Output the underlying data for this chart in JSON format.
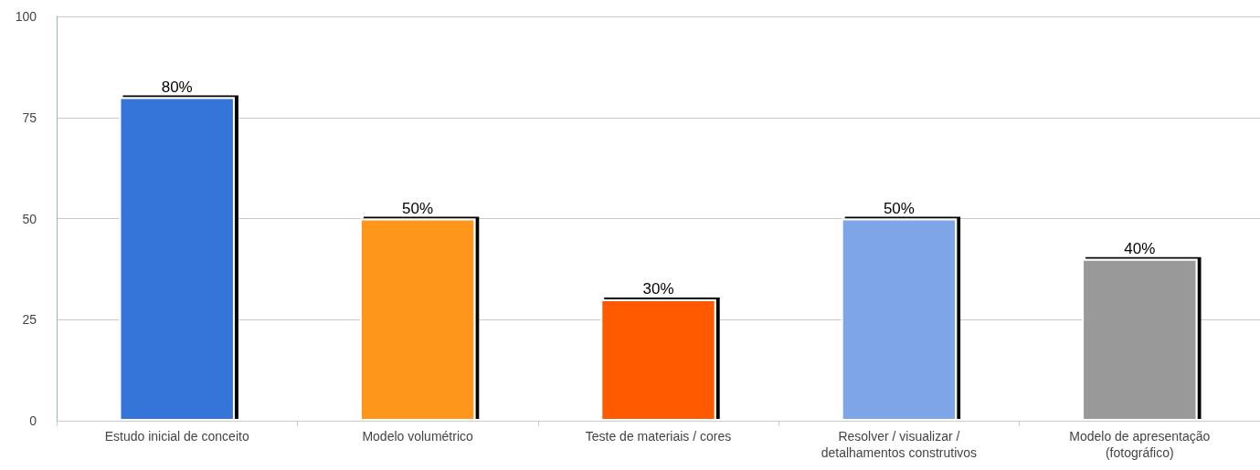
{
  "chart_data": {
    "type": "bar",
    "categories": [
      "Estudo inicial de conceito",
      "Modelo volumétrico",
      "Teste de materiais / cores",
      "Resolver / visualizar /\ndetalhamentos construtivos",
      "Modelo de apresentação\n(fotográfico)"
    ],
    "values": [
      80,
      50,
      30,
      50,
      40
    ],
    "colors": [
      "#3674d9",
      "#ff961e",
      "#ff5a06",
      "#7ea5e8",
      "#999999"
    ],
    "value_labels": [
      "80%",
      "50%",
      "30%",
      "50%",
      "40%"
    ],
    "ylim": [
      0,
      100
    ],
    "yticks": [
      0,
      25,
      50,
      75,
      100
    ],
    "grid": "y"
  }
}
